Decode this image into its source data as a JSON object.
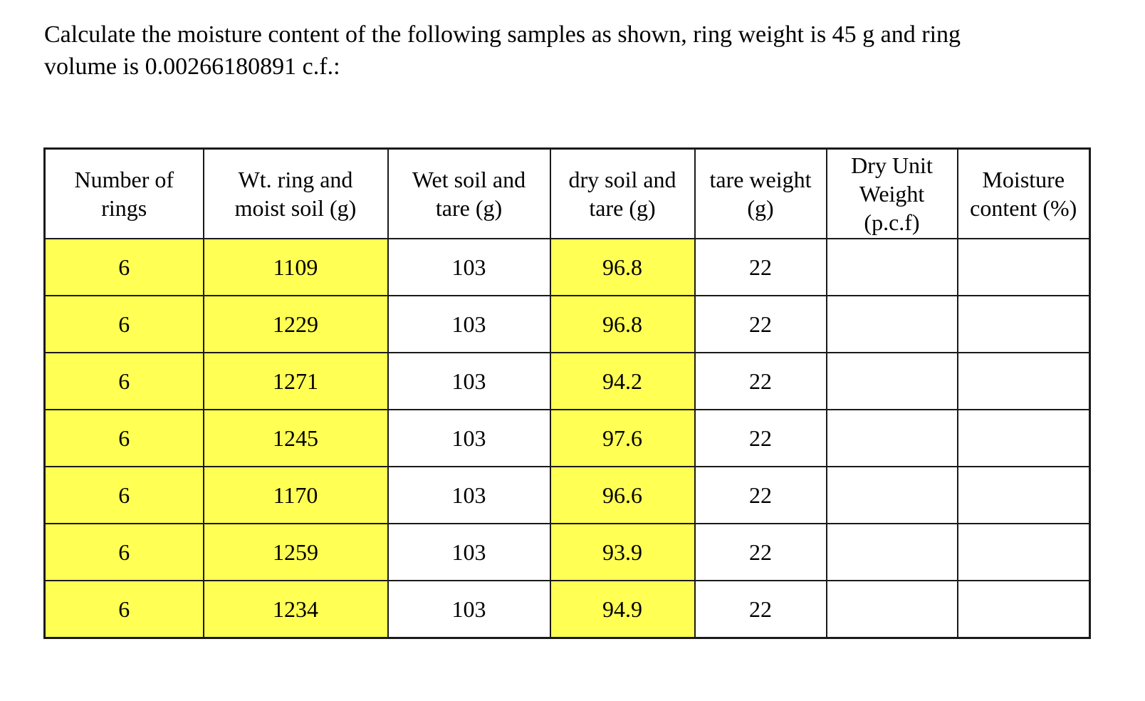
{
  "question": {
    "text": "Calculate the moisture content of the following samples as shown, ring weight is 45 g and ring\nvolume is 0.00266180891 c.f.:"
  },
  "table": {
    "headers": [
      "Number of\nrings",
      "Wt. ring and\nmoist soil (g)",
      "Wet soil and\ntare (g)",
      "dry soil and\ntare (g)",
      "tare weight\n(g)",
      "Dry Unit\nWeight\n(p.c.f)",
      "Moisture\ncontent (%)"
    ],
    "rows": [
      [
        "6",
        "1109",
        "103",
        "96.8",
        "22",
        "",
        ""
      ],
      [
        "6",
        "1229",
        "103",
        "96.8",
        "22",
        "",
        ""
      ],
      [
        "6",
        "1271",
        "103",
        "94.2",
        "22",
        "",
        ""
      ],
      [
        "6",
        "1245",
        "103",
        "97.6",
        "22",
        "",
        ""
      ],
      [
        "6",
        "1170",
        "103",
        "96.6",
        "22",
        "",
        ""
      ],
      [
        "6",
        "1259",
        "103",
        "93.9",
        "22",
        "",
        ""
      ],
      [
        "6",
        "1234",
        "103",
        "94.9",
        "22",
        "",
        ""
      ]
    ],
    "highlighted_column_indexes": [
      0,
      1,
      3
    ],
    "highlight_color": "#FFFF54",
    "border_color": "#1a1a1a",
    "text_color": "#000000"
  }
}
